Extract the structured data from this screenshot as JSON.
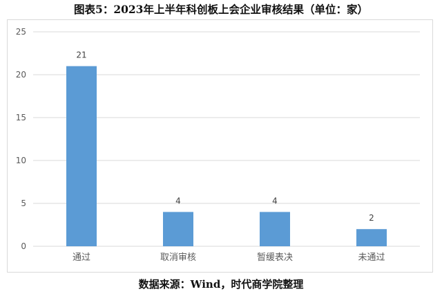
{
  "header": {
    "title": "图表5：2023年上半年科创板上会企业审核结果（单位：家）"
  },
  "footer": {
    "source": "数据来源：Wind，时代商学院整理"
  },
  "colors": {
    "bar": "#5b9bd5",
    "gridline": "#d9d9d9",
    "axis_text": "#595959"
  },
  "chart_data": {
    "type": "bar",
    "title": "图表5：2023年上半年科创板上会企业审核结果（单位：家）",
    "categories": [
      "通过",
      "取消审核",
      "暂缓表决",
      "未通过"
    ],
    "values": [
      21,
      4,
      4,
      2
    ],
    "data_labels": [
      "21",
      "4",
      "4",
      "2"
    ],
    "ylim": [
      0,
      25
    ],
    "yticks": [
      0,
      5,
      10,
      15,
      20,
      25
    ],
    "ytick_labels": [
      "0",
      "5",
      "10",
      "15",
      "20",
      "25"
    ],
    "xlabel": "",
    "ylabel": "",
    "grid": true,
    "legend": "none"
  }
}
